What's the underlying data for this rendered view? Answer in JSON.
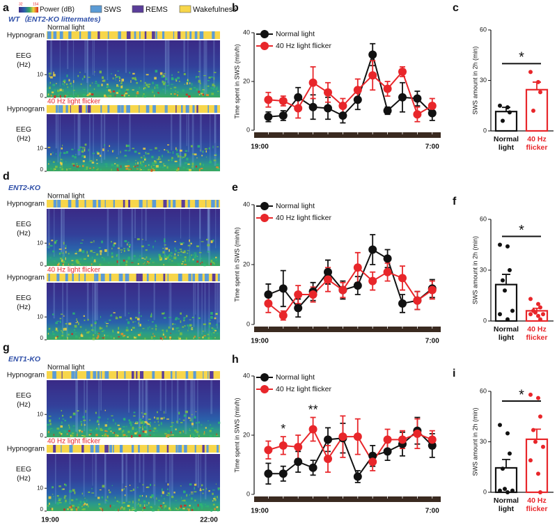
{
  "chart_data": [
    {
      "type": "spectrogram",
      "panel": "a",
      "subtitle": "WT（ENT2-KO littermates)",
      "legend": {
        "title": "Power (dB)",
        "colorbar_ticks": [
          32,
          154
        ],
        "items": [
          {
            "name": "SWS",
            "color": "#5b9bd5"
          },
          {
            "name": "REMS",
            "color": "#5a3d99"
          },
          {
            "name": "Wakefulness",
            "color": "#f7d64a"
          }
        ]
      },
      "conditions": [
        "Normal light",
        "40 Hz light flicker"
      ],
      "row_label": "Hypnogram",
      "y_label": [
        "EEG",
        "(Hz)"
      ],
      "ylim": [
        0,
        25
      ],
      "yticks": [
        0,
        10
      ]
    },
    {
      "type": "line",
      "panel": "b",
      "ylabel": "Time spent in SWS (min/h)",
      "legend": "upper left",
      "categories": [
        "19:00",
        null,
        null,
        null,
        null,
        null,
        null,
        null,
        null,
        null,
        null,
        null,
        "7:00"
      ],
      "ylim": [
        0,
        40
      ],
      "yticks": [
        0,
        20,
        40
      ],
      "series": [
        {
          "name": "Normal light",
          "color": "#111111",
          "values": [
            null,
            5.5,
            6,
            13.5,
            9.5,
            9,
            6,
            12.5,
            31,
            8,
            13.5,
            13,
            7
          ],
          "errors": [
            null,
            2,
            2,
            4,
            5,
            4.5,
            3,
            4,
            4.5,
            1.5,
            6,
            3,
            3
          ]
        },
        {
          "name": "40 Hz light flicker",
          "color": "#e8262a",
          "values": [
            null,
            12.5,
            12,
            9,
            19.5,
            15.5,
            10,
            16.5,
            22.5,
            17,
            24,
            6.5,
            10
          ],
          "errors": [
            null,
            3,
            2,
            4,
            6.5,
            4,
            3,
            4.5,
            6,
            3,
            2,
            3,
            3
          ]
        }
      ]
    },
    {
      "type": "bar",
      "panel": "c",
      "ylabel": "SWS amount in 2h (min)",
      "categories": [
        "Normal light",
        "40 Hz flicker"
      ],
      "colors": [
        "#111111",
        "#e8262a"
      ],
      "values": [
        11.5,
        24.5
      ],
      "errors": [
        2.5,
        4.5
      ],
      "points": [
        [
          15,
          14,
          11,
          6
        ],
        [
          35,
          29,
          23,
          12
        ]
      ],
      "significance": "*",
      "ylim": [
        0,
        60
      ],
      "yticks": [
        0,
        30,
        60
      ]
    },
    {
      "type": "spectrogram",
      "panel": "d",
      "subtitle": "ENT2-KO",
      "conditions": [
        "Normal light",
        "40 Hz light flicker"
      ],
      "row_label": "Hypnogram",
      "y_label": [
        "EEG",
        "(Hz)"
      ],
      "ylim": [
        0,
        25
      ],
      "yticks": [
        0,
        10
      ]
    },
    {
      "type": "line",
      "panel": "e",
      "ylabel": "Time spent in SWS (min/h)",
      "legend": "upper left",
      "categories": [
        "19:00",
        null,
        null,
        null,
        null,
        null,
        null,
        null,
        null,
        null,
        null,
        null,
        "7:00"
      ],
      "ylim": [
        0,
        40
      ],
      "yticks": [
        0,
        20,
        40
      ],
      "series": [
        {
          "name": "Normal light",
          "color": "#111111",
          "values": [
            null,
            10,
            12,
            5.5,
            11,
            17.5,
            11.5,
            13,
            25,
            22,
            7,
            8,
            12
          ],
          "errors": [
            null,
            3.5,
            6,
            3,
            3,
            4,
            3,
            3,
            5,
            3,
            3,
            3,
            3
          ]
        },
        {
          "name": "40 Hz light flicker",
          "color": "#e8262a",
          "values": [
            null,
            7,
            3,
            10,
            10,
            15,
            11.5,
            19,
            14.5,
            17.5,
            15.5,
            8,
            11.5
          ],
          "errors": [
            null,
            3,
            1.5,
            3,
            2.5,
            4,
            2.5,
            5,
            3,
            3,
            4,
            3,
            3
          ]
        }
      ]
    },
    {
      "type": "bar",
      "panel": "f",
      "ylabel": "SWS amount in 2h (min)",
      "categories": [
        "Normal light",
        "40 Hz flicker"
      ],
      "colors": [
        "#111111",
        "#e8262a"
      ],
      "values": [
        21.5,
        6
      ],
      "errors": [
        6,
        1.5
      ],
      "points": [
        [
          45,
          44,
          30,
          24,
          18,
          6,
          4,
          1
        ],
        [
          13,
          10,
          8,
          6,
          5,
          4,
          4,
          3,
          1
        ]
      ],
      "significance": "*",
      "ylim": [
        0,
        60
      ],
      "yticks": [
        0,
        30,
        60
      ]
    },
    {
      "type": "spectrogram",
      "panel": "g",
      "subtitle": "ENT1-KO",
      "conditions": [
        "Normal light",
        "40 Hz light flicker"
      ],
      "row_label": "Hypnogram",
      "y_label": [
        "EEG",
        "(Hz)"
      ],
      "ylim": [
        0,
        25
      ],
      "yticks": [
        0,
        10
      ],
      "xticks": [
        "19:00",
        "22:00"
      ]
    },
    {
      "type": "line",
      "panel": "h",
      "ylabel": "Time spent in SWS (min/h)",
      "legend": "upper left",
      "categories": [
        "19:00",
        null,
        null,
        null,
        null,
        null,
        null,
        null,
        null,
        null,
        null,
        null,
        "7:00"
      ],
      "annotations": [
        null,
        null,
        "*",
        null,
        "**",
        null,
        null,
        null,
        null,
        null,
        null,
        null,
        null
      ],
      "ylim": [
        0,
        40
      ],
      "yticks": [
        0,
        20,
        40
      ],
      "series": [
        {
          "name": "Normal light",
          "color": "#111111",
          "values": [
            null,
            7,
            7,
            11,
            9,
            18.5,
            19,
            6,
            13,
            14.5,
            17,
            21.5,
            16.5
          ],
          "errors": [
            null,
            3.5,
            2.5,
            3.5,
            2.5,
            4,
            5,
            2,
            3.5,
            3,
            4,
            4.5,
            4
          ]
        },
        {
          "name": "40 Hz light flicker",
          "color": "#e8262a",
          "values": [
            null,
            15,
            16.5,
            16,
            22,
            12,
            19.5,
            19.5,
            11,
            18.5,
            18.5,
            20.5,
            18.5
          ],
          "errors": [
            null,
            3,
            3,
            4,
            4,
            4.5,
            7,
            6,
            3,
            3.5,
            3,
            5,
            3
          ]
        }
      ]
    },
    {
      "type": "bar",
      "panel": "i",
      "ylabel": "SWS amount in 2h (min)",
      "categories": [
        "Normal light",
        "40 Hz flicker"
      ],
      "colors": [
        "#111111",
        "#e8262a"
      ],
      "values": [
        14.5,
        31.5
      ],
      "errors": [
        5,
        6
      ],
      "points": [
        [
          40,
          35,
          23,
          14,
          2,
          1,
          1,
          0
        ],
        [
          58,
          56,
          45,
          37,
          30,
          27,
          19,
          11,
          0
        ]
      ],
      "significance": "*",
      "ylim": [
        0,
        60
      ],
      "yticks": [
        0,
        30,
        60
      ]
    }
  ]
}
